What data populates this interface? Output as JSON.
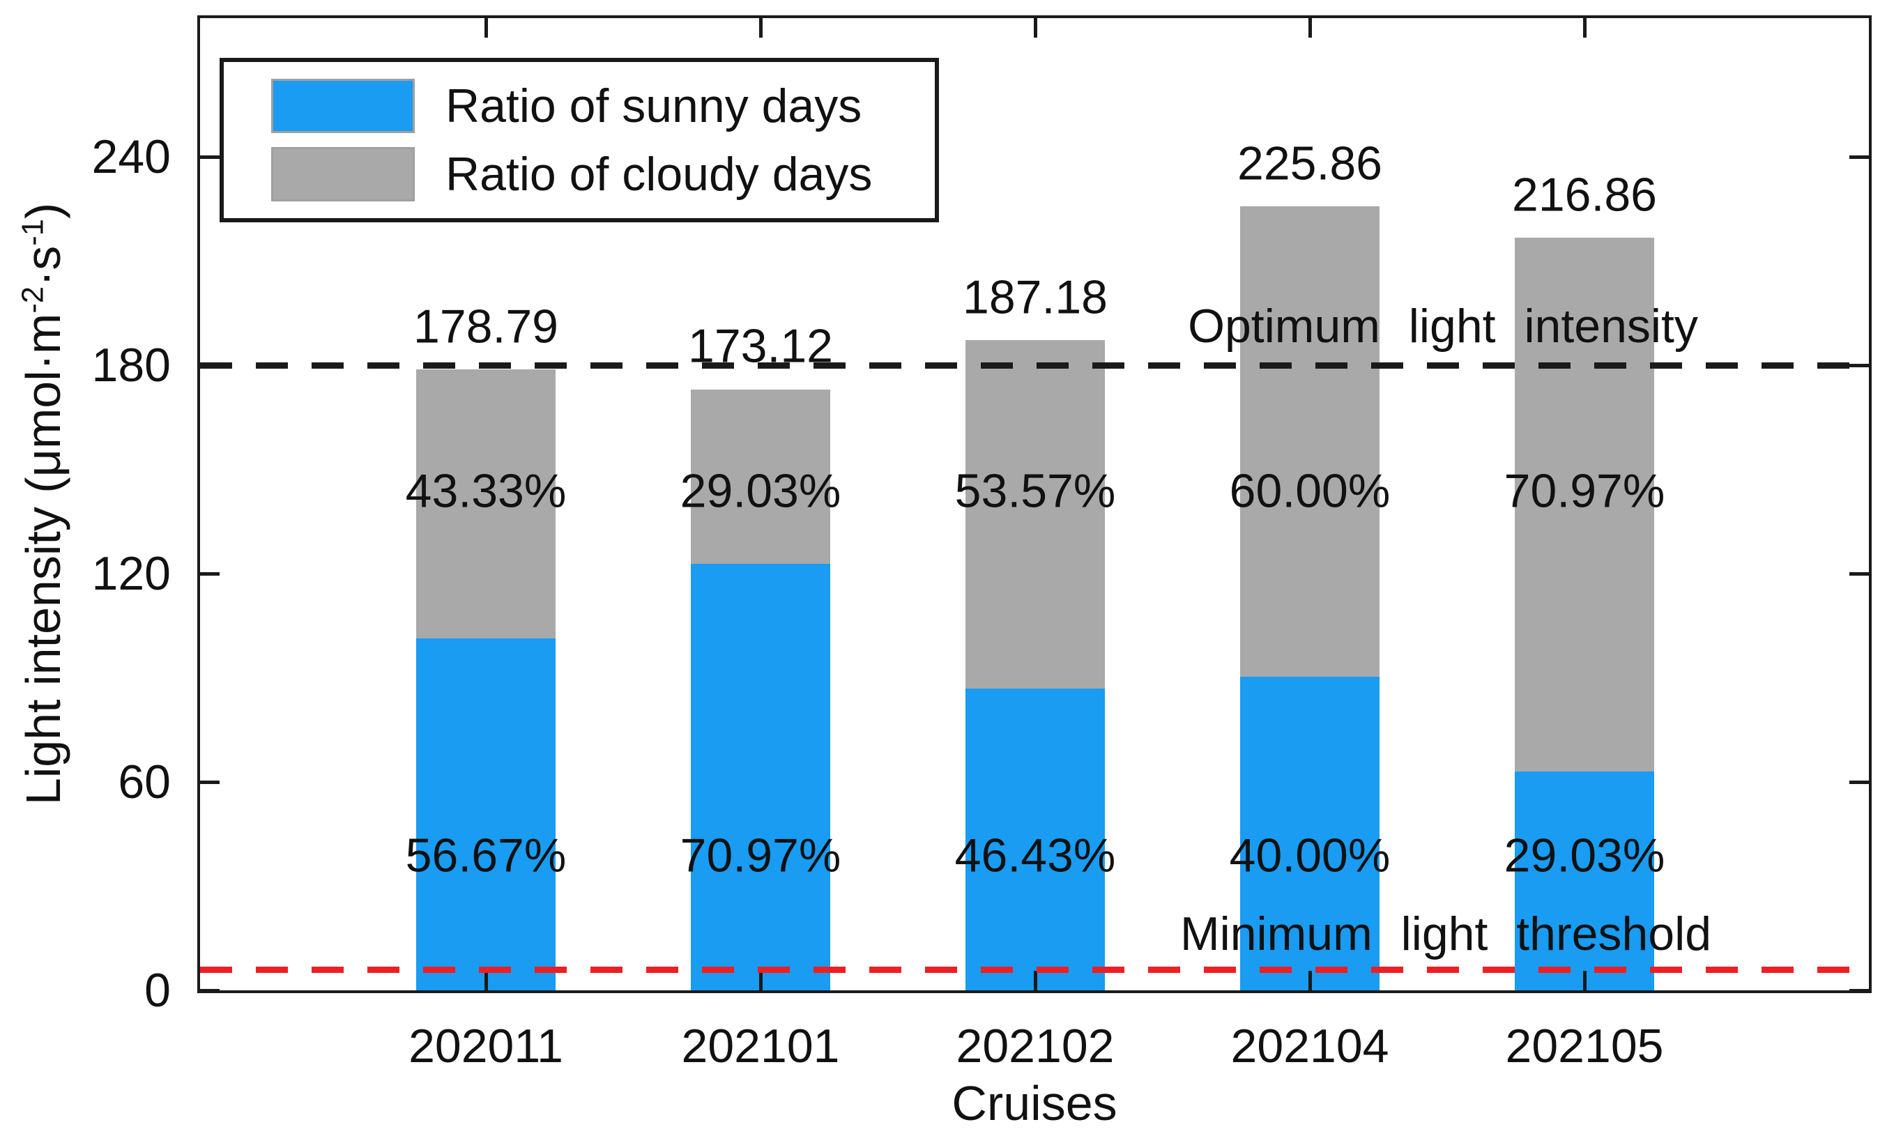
{
  "chart_data": {
    "type": "bar",
    "stacked": true,
    "title": "",
    "xlabel": "Cruises",
    "ylabel": "Light intensity (μmol·m-2·s-1)",
    "ylabel_parts": {
      "pre": "Light intensity (μmol·m",
      "sup1": "-2",
      "mid": "·s",
      "sup2": "-1",
      "post": ")"
    },
    "categories": [
      "202011",
      "202101",
      "202102",
      "202104",
      "202105"
    ],
    "series": [
      {
        "name": "Ratio of sunny days",
        "color": "#199CF2",
        "values": [
          101.32,
          122.86,
          86.91,
          90.34,
          62.95
        ],
        "percent_labels": [
          "56.67%",
          "70.97%",
          "46.43%",
          "40.00%",
          "29.03%"
        ]
      },
      {
        "name": "Ratio of cloudy days",
        "color": "#A9A9A9",
        "values": [
          77.47,
          50.26,
          100.27,
          135.52,
          153.91
        ],
        "percent_labels": [
          "43.33%",
          "29.03%",
          "53.57%",
          "60.00%",
          "70.97%"
        ]
      }
    ],
    "bar_totals": [
      178.79,
      173.12,
      187.18,
      225.86,
      216.86
    ],
    "total_labels": [
      "178.79",
      "173.12",
      "187.18",
      "225.86",
      "216.86"
    ],
    "ylim": [
      0,
      280
    ],
    "yticks": [
      0,
      60,
      120,
      180,
      240
    ],
    "grid": false,
    "legend_position": "top-left",
    "reference_lines": [
      {
        "label": "Optimum light intensity",
        "y": 180,
        "color": "#1a1a1a",
        "style": "dashed"
      },
      {
        "label": "Minimum light threshold",
        "y": 6,
        "color": "#ED1F24",
        "style": "dashed"
      }
    ]
  },
  "legend": {
    "items": [
      {
        "label": "Ratio of sunny days",
        "swatch_color": "#199CF2"
      },
      {
        "label": "Ratio of cloudy days",
        "swatch_color": "#A9A9A9"
      }
    ]
  },
  "colors": {
    "axis": "#1a1a1a",
    "text": "#111111",
    "background": "#ffffff"
  }
}
